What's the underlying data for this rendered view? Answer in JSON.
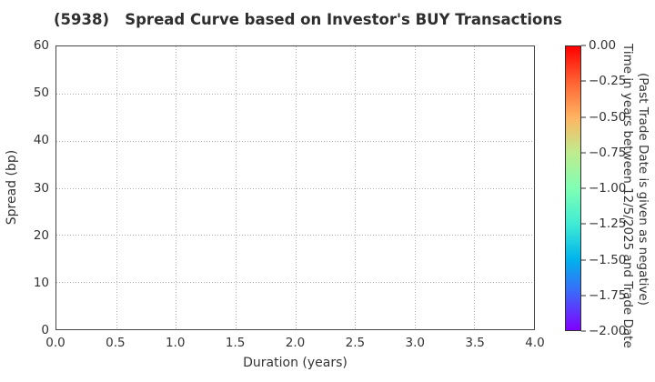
{
  "chart_data": {
    "type": "scatter",
    "title": "(5938)   Spread Curve based on Investor's BUY Transactions",
    "xlabel": "Duration (years)",
    "ylabel": "Spread (bp)",
    "xlim": [
      0.0,
      4.0
    ],
    "ylim": [
      0,
      60
    ],
    "xtick_labels": [
      "0.0",
      "0.5",
      "1.0",
      "1.5",
      "2.0",
      "2.5",
      "3.0",
      "3.5",
      "4.0"
    ],
    "ytick_labels": [
      "0",
      "10",
      "20",
      "30",
      "40",
      "50",
      "60"
    ],
    "grid": "dotted",
    "legend": "none",
    "series": [],
    "points": [],
    "colorbar": {
      "label": "Time in years between 12/5/2025 and Trade Date\n(Past Trade Date is given as negative)",
      "tick_labels": [
        "0.00",
        "−0.25",
        "−0.50",
        "−0.75",
        "−1.00",
        "−1.25",
        "−1.50",
        "−1.75",
        "−2.00"
      ],
      "range_top": 0.0,
      "range_bottom": -2.0,
      "colormap": "rainbow",
      "gradient": [
        {
          "pos": 0,
          "color": "#ff0000"
        },
        {
          "pos": 12.5,
          "color": "#ff6232"
        },
        {
          "pos": 25,
          "color": "#ffb462"
        },
        {
          "pos": 37.5,
          "color": "#bfec8e"
        },
        {
          "pos": 50,
          "color": "#80ffb4"
        },
        {
          "pos": 62.5,
          "color": "#40ecd4"
        },
        {
          "pos": 75,
          "color": "#00b4ec"
        },
        {
          "pos": 87.5,
          "color": "#4062fa"
        },
        {
          "pos": 100,
          "color": "#8000ff"
        }
      ]
    }
  },
  "colors": {
    "text": "#333333",
    "frame": "#464646",
    "grid": "#b0b0b0",
    "background": "#ffffff"
  }
}
